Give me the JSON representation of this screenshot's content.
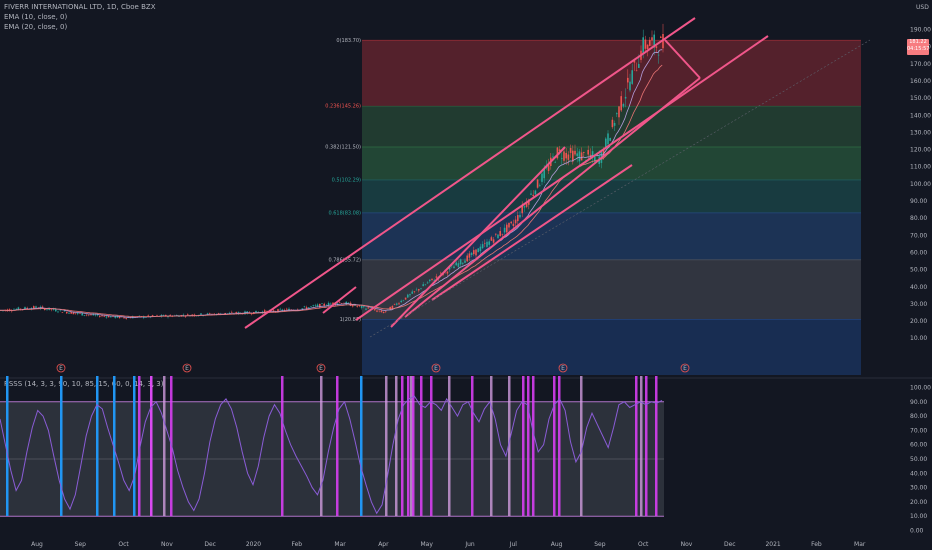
{
  "header": {
    "title": "FIVERR INTERNATIONAL LTD, 1D, Cboe BZX",
    "ema1": "EMA (10, close, 0)",
    "ema2": "EMA (20, close, 0)",
    "currency": "USD"
  },
  "price_badge": {
    "value": "181.22",
    "time": "04:15:57"
  },
  "indicator": {
    "label": "RSSS (14, 3, 3, 90, 10, 85, 15, 60, 0, 14, 3, 3)"
  },
  "earnings_marker": "E",
  "colors": {
    "background": "#131722",
    "up": "#26a69a",
    "down": "#ef5350",
    "channel": "#f0568a",
    "oscillator": "#8a5cd6",
    "band_fill": "#5d606b",
    "band_line": "#b073c8",
    "pink_bar": "#e040fb",
    "light_pink_bar": "#d9a3e8",
    "blue_bar": "#2196f3"
  },
  "chart_data": [
    {
      "type": "candlestick",
      "symbol": "FVRR",
      "interval": "1D",
      "title": "FIVERR INTERNATIONAL LTD, 1D, Cboe BZX",
      "ylabel": "USD",
      "ylim": [
        10,
        200
      ],
      "y_ticks": [
        10,
        20,
        30,
        40,
        50,
        60,
        70,
        80,
        90,
        100,
        110,
        120,
        130,
        140,
        150,
        160,
        170,
        180,
        190
      ],
      "y_tick_labels": [
        "10.00",
        "20.00",
        "30.00",
        "40.00",
        "50.00",
        "60.00",
        "70.00",
        "80.00",
        "90.00",
        "100.00",
        "110.00",
        "120.00",
        "130.00",
        "140.00",
        "150.00",
        "160.00",
        "170.00",
        "180.00",
        "190.00"
      ],
      "x_tick_labels": [
        "Aug",
        "Sep",
        "Oct",
        "Nov",
        "Dec",
        "2020",
        "Feb",
        "Mar",
        "Apr",
        "May",
        "Jun",
        "Jul",
        "Aug",
        "Sep",
        "Oct",
        "Nov",
        "Dec",
        "2021",
        "Feb",
        "Mar"
      ],
      "price_path": [
        {
          "x": "Aug",
          "y": 28
        },
        {
          "x": "Sep",
          "y": 24
        },
        {
          "x": "Oct",
          "y": 22
        },
        {
          "x": "Nov",
          "y": 23
        },
        {
          "x": "Dec",
          "y": 24
        },
        {
          "x": "2020",
          "y": 25
        },
        {
          "x": "Feb",
          "y": 27
        },
        {
          "x": "Mar",
          "y": 31
        },
        {
          "x": "Apr",
          "y": 25
        },
        {
          "x": "May",
          "y": 42
        },
        {
          "x": "Jun",
          "y": 58
        },
        {
          "x": "Jul",
          "y": 77
        },
        {
          "x": "Aug",
          "y": 118
        },
        {
          "x": "Sep",
          "y": 115
        },
        {
          "x": "Oct",
          "y": 181.22
        }
      ],
      "earnings_events": [
        "Aug",
        "Nov",
        "Feb",
        "May",
        "Aug",
        "Nov"
      ],
      "fibonacci": {
        "levels": [
          {
            "ratio": "0",
            "price": 183.7,
            "label": "0(183.70)"
          },
          {
            "ratio": "0.236",
            "price": 145.26,
            "label": "0.236(145.26)"
          },
          {
            "ratio": "0.382",
            "price": 121.5,
            "label": "0.382(121.50)"
          },
          {
            "ratio": "0.5",
            "price": 102.29,
            "label": "0.5(102.29)"
          },
          {
            "ratio": "0.618",
            "price": 83.08,
            "label": "0.618(83.08)"
          },
          {
            "ratio": "0.786",
            "price": 55.72,
            "label": "0.786(55.72)"
          },
          {
            "ratio": "1",
            "price": 20.87,
            "label": "1(20.87)"
          }
        ],
        "zone_colors": [
          "#8b2a35",
          "#2e5a3c",
          "#2f6e45",
          "#1d5a5a",
          "#254a80",
          "#4a4e5a",
          "#1e3f7a"
        ]
      },
      "last_price": 181.22,
      "grid": true
    },
    {
      "type": "line",
      "title": "RSSS (14, 3, 3, 90, 10, 85, 15, 60, 0, 14, 3, 3)",
      "ylim": [
        0,
        100
      ],
      "y_ticks": [
        0,
        10,
        20,
        30,
        40,
        50,
        60,
        70,
        80,
        90,
        100
      ],
      "y_tick_labels": [
        "0.00",
        "10.00",
        "20.00",
        "30.00",
        "40.00",
        "50.00",
        "60.00",
        "70.00",
        "80.00",
        "90.00",
        "100.00"
      ],
      "bands": [
        10,
        50,
        90
      ],
      "values": [
        78,
        60,
        42,
        28,
        35,
        55,
        72,
        84,
        80,
        70,
        52,
        35,
        22,
        15,
        25,
        45,
        66,
        80,
        88,
        85,
        72,
        60,
        48,
        35,
        28,
        38,
        58,
        76,
        86,
        90,
        82,
        70,
        58,
        42,
        30,
        20,
        14,
        22,
        40,
        62,
        78,
        88,
        92,
        85,
        72,
        55,
        40,
        32,
        45,
        65,
        80,
        88,
        82,
        70,
        60,
        52,
        45,
        38,
        30,
        25,
        35,
        55,
        72,
        85,
        90,
        78,
        62,
        45,
        32,
        20,
        12,
        18,
        38,
        60,
        78,
        88,
        92,
        94,
        88,
        86,
        90,
        88,
        84,
        92,
        86,
        80,
        88,
        90,
        82,
        76,
        85,
        90,
        78,
        60,
        52,
        68,
        84,
        90,
        88,
        70,
        55,
        60,
        78,
        88,
        92,
        84,
        62,
        48,
        55,
        72,
        82,
        74,
        66,
        58,
        72,
        88,
        90,
        86,
        88,
        90,
        88,
        90,
        89,
        91
      ]
    }
  ]
}
